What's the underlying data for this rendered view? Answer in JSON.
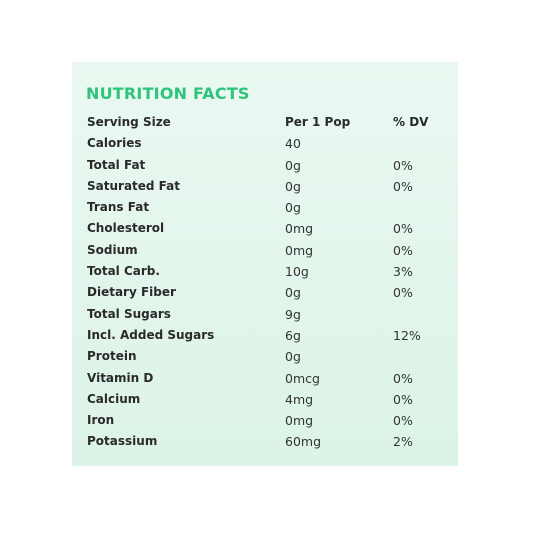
{
  "title": "NUTRITION FACTS",
  "header": {
    "label": "Serving Size",
    "amount": "Per 1 Pop",
    "dv": "% DV"
  },
  "rows": [
    {
      "label": "Calories",
      "amount": "40",
      "dv": ""
    },
    {
      "label": "Total Fat",
      "amount": "0g",
      "dv": "0%"
    },
    {
      "label": "Saturated Fat",
      "amount": "0g",
      "dv": "0%"
    },
    {
      "label": "Trans Fat",
      "amount": "0g",
      "dv": ""
    },
    {
      "label": "Cholesterol",
      "amount": "0mg",
      "dv": "0%"
    },
    {
      "label": "Sodium",
      "amount": "0mg",
      "dv": "0%"
    },
    {
      "label": "Total Carb.",
      "amount": "10g",
      "dv": "3%"
    },
    {
      "label": "Dietary Fiber",
      "amount": "0g",
      "dv": "0%"
    },
    {
      "label": "Total Sugars",
      "amount": "9g",
      "dv": ""
    },
    {
      "label": "Incl. Added Sugars",
      "amount": "6g",
      "dv": "12%"
    },
    {
      "label": "Protein",
      "amount": "0g",
      "dv": ""
    },
    {
      "label": "Vitamin D",
      "amount": "0mcg",
      "dv": "0%"
    },
    {
      "label": "Calcium",
      "amount": "4mg",
      "dv": "0%"
    },
    {
      "label": "Iron",
      "amount": "0mg",
      "dv": "0%"
    },
    {
      "label": "Potassium",
      "amount": "60mg",
      "dv": "2%"
    }
  ],
  "colors": {
    "title": "#2fc47c",
    "panel_background": "#e3f6ec",
    "text": "#222222"
  }
}
